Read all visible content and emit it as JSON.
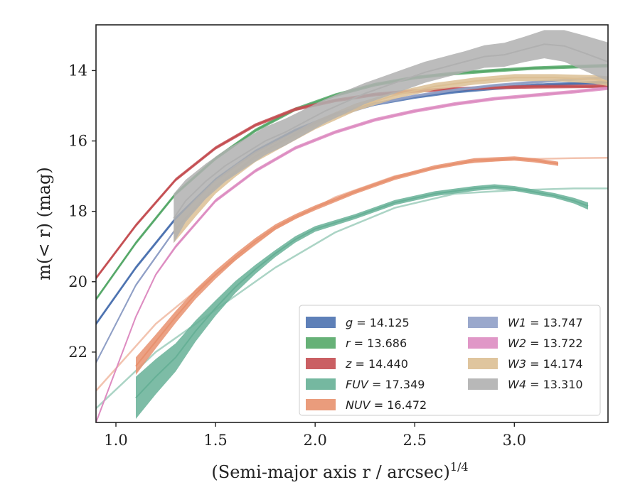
{
  "chart_data": {
    "type": "line",
    "xlabel": "(Semi-major axis r / arcsec)",
    "xlabel_sup": "1/4",
    "ylabel": "m(< r) (mag)",
    "xlim": [
      0.9,
      3.47
    ],
    "ylim": [
      24.0,
      12.7
    ],
    "y_inverted": true,
    "x_ticks": [
      1.0,
      1.5,
      2.0,
      2.5,
      3.0
    ],
    "x_tick_labels": [
      "1.0",
      "1.5",
      "2.0",
      "2.5",
      "3.0"
    ],
    "y_ticks": [
      14,
      16,
      18,
      20,
      22
    ],
    "y_tick_labels": [
      "14",
      "16",
      "18",
      "20",
      "22"
    ],
    "grid": false,
    "legend_position": "lower-right",
    "series": [
      {
        "name": "g = 14.125",
        "label_var": "g",
        "label_val": "= 14.125",
        "color": "#4c72b0",
        "x": [
          0.9,
          1.1,
          1.3,
          1.5,
          1.7,
          1.9,
          2.1,
          2.3,
          2.5,
          2.7,
          2.9,
          3.1,
          3.3,
          3.47
        ],
        "y": [
          21.2,
          19.6,
          18.2,
          17.1,
          16.3,
          15.7,
          15.25,
          14.95,
          14.75,
          14.6,
          14.5,
          14.42,
          14.37,
          14.33
        ],
        "band": [
          0.05,
          0.05,
          0.05,
          0.05,
          0.05,
          0.05,
          0.05,
          0.05,
          0.05,
          0.05,
          0.05,
          0.05,
          0.05,
          0.05
        ]
      },
      {
        "name": "r = 13.686",
        "label_var": "r",
        "label_val": "= 13.686",
        "color": "#55a868",
        "x": [
          0.9,
          1.1,
          1.3,
          1.5,
          1.7,
          1.9,
          2.1,
          2.3,
          2.5,
          2.7,
          2.9,
          3.1,
          3.3,
          3.47
        ],
        "y": [
          20.5,
          18.9,
          17.5,
          16.5,
          15.7,
          15.1,
          14.7,
          14.4,
          14.2,
          14.08,
          14.0,
          13.93,
          13.89,
          13.86
        ],
        "band": [
          0.05,
          0.05,
          0.05,
          0.05,
          0.05,
          0.05,
          0.05,
          0.05,
          0.05,
          0.05,
          0.05,
          0.05,
          0.05,
          0.05
        ]
      },
      {
        "name": "z = 14.440",
        "label_var": "z",
        "label_val": "= 14.440",
        "color": "#c44e52",
        "x": [
          0.9,
          1.1,
          1.3,
          1.5,
          1.7,
          1.9,
          2.1,
          2.3,
          2.5,
          2.7,
          2.9,
          3.1,
          3.3,
          3.47
        ],
        "y": [
          19.9,
          18.4,
          17.1,
          16.2,
          15.55,
          15.1,
          14.85,
          14.68,
          14.58,
          14.52,
          14.48,
          14.46,
          14.45,
          14.44
        ],
        "band": [
          0.05,
          0.05,
          0.05,
          0.05,
          0.05,
          0.05,
          0.05,
          0.05,
          0.05,
          0.05,
          0.05,
          0.05,
          0.05,
          0.05
        ]
      },
      {
        "name": "FUV = 17.349",
        "label_var": "FUV",
        "label_val": "= 17.349",
        "color": "#66b096",
        "x": [
          1.1,
          1.2,
          1.3,
          1.4,
          1.5,
          1.6,
          1.7,
          1.8,
          1.9,
          2.0,
          2.2,
          2.4,
          2.6,
          2.8,
          2.9,
          3.0,
          3.1,
          3.2,
          3.3,
          3.37
        ],
        "y": [
          23.3,
          22.7,
          22.15,
          21.4,
          20.75,
          20.15,
          19.65,
          19.2,
          18.8,
          18.5,
          18.15,
          17.75,
          17.5,
          17.35,
          17.3,
          17.35,
          17.45,
          17.55,
          17.7,
          17.85
        ],
        "band": [
          0.6,
          0.5,
          0.4,
          0.3,
          0.22,
          0.17,
          0.13,
          0.1,
          0.09,
          0.08,
          0.07,
          0.07,
          0.07,
          0.07,
          0.07,
          0.07,
          0.07,
          0.07,
          0.08,
          0.1
        ],
        "model_x": [
          0.9,
          1.2,
          1.5,
          1.8,
          2.1,
          2.4,
          2.7,
          3.0,
          3.3,
          3.47
        ],
        "model_y": [
          23.6,
          22.0,
          20.8,
          19.6,
          18.6,
          17.9,
          17.5,
          17.4,
          17.35,
          17.35
        ]
      },
      {
        "name": "NUV = 16.472",
        "label_var": "NUV",
        "label_val": "= 16.472",
        "color": "#e8916e",
        "x": [
          1.1,
          1.2,
          1.3,
          1.4,
          1.5,
          1.6,
          1.7,
          1.8,
          1.9,
          2.0,
          2.2,
          2.4,
          2.6,
          2.8,
          3.0,
          3.1,
          3.2,
          3.22
        ],
        "y": [
          22.4,
          21.7,
          21.0,
          20.35,
          19.8,
          19.3,
          18.85,
          18.45,
          18.15,
          17.9,
          17.45,
          17.05,
          16.75,
          16.55,
          16.5,
          16.55,
          16.63,
          16.65
        ],
        "band": [
          0.25,
          0.2,
          0.17,
          0.14,
          0.12,
          0.1,
          0.09,
          0.08,
          0.07,
          0.07,
          0.06,
          0.06,
          0.06,
          0.06,
          0.06,
          0.06,
          0.06,
          0.06
        ],
        "model_x": [
          0.9,
          1.2,
          1.5,
          1.8,
          2.1,
          2.4,
          2.7,
          3.0,
          3.3,
          3.47
        ],
        "model_y": [
          23.1,
          21.2,
          19.8,
          18.5,
          17.6,
          17.0,
          16.65,
          16.52,
          16.49,
          16.48
        ]
      },
      {
        "name": "W1 = 13.747",
        "label_var": "W1",
        "label_val": "= 13.747",
        "color": "#8f9fc6",
        "x": [
          0.9,
          1.1,
          1.3,
          1.5,
          1.7,
          1.9,
          2.1,
          2.3,
          2.5,
          2.7,
          2.9,
          3.1,
          3.3,
          3.47
        ],
        "y": [
          22.3,
          20.1,
          18.5,
          17.3,
          16.45,
          15.8,
          15.3,
          14.95,
          14.72,
          14.55,
          14.42,
          14.33,
          14.25,
          14.2
        ],
        "band": [
          0.04,
          0.04,
          0.04,
          0.04,
          0.04,
          0.04,
          0.04,
          0.04,
          0.04,
          0.04,
          0.04,
          0.04,
          0.04,
          0.04
        ]
      },
      {
        "name": "W2 = 13.722",
        "label_var": "W2",
        "label_val": "= 13.722",
        "color": "#dd8cc1",
        "x": [
          0.9,
          1.1,
          1.2,
          1.3,
          1.5,
          1.7,
          1.9,
          2.1,
          2.3,
          2.5,
          2.7,
          2.9,
          3.1,
          3.3,
          3.47
        ],
        "y": [
          24.0,
          21.0,
          19.8,
          19.0,
          17.7,
          16.85,
          16.2,
          15.75,
          15.4,
          15.15,
          14.95,
          14.8,
          14.7,
          14.6,
          14.5
        ],
        "band": [
          0.04,
          0.04,
          0.04,
          0.05,
          0.05,
          0.05,
          0.05,
          0.05,
          0.05,
          0.05,
          0.05,
          0.05,
          0.05,
          0.05,
          0.05
        ]
      },
      {
        "name": "W3 = 14.174",
        "label_var": "W3",
        "label_val": "= 14.174",
        "color": "#dcbf94",
        "x": [
          1.29,
          1.4,
          1.5,
          1.6,
          1.7,
          1.8,
          1.9,
          2.0,
          2.2,
          2.4,
          2.6,
          2.8,
          3.0,
          3.2,
          3.4,
          3.47
        ],
        "y": [
          18.6,
          17.9,
          17.3,
          16.85,
          16.45,
          16.15,
          15.85,
          15.55,
          15.05,
          14.7,
          14.45,
          14.3,
          14.2,
          14.2,
          14.25,
          14.3
        ],
        "band": [
          0.3,
          0.25,
          0.2,
          0.17,
          0.15,
          0.14,
          0.13,
          0.12,
          0.11,
          0.1,
          0.1,
          0.1,
          0.1,
          0.1,
          0.12,
          0.14
        ]
      },
      {
        "name": "W4 = 13.310",
        "label_var": "W4",
        "label_val": "= 13.310",
        "color": "#b0b0b0",
        "x": [
          1.29,
          1.35,
          1.45,
          1.55,
          1.65,
          1.75,
          1.85,
          1.95,
          2.05,
          2.15,
          2.25,
          2.35,
          2.45,
          2.55,
          2.65,
          2.75,
          2.85,
          2.95,
          3.05,
          3.15,
          3.25,
          3.35,
          3.47
        ],
        "y": [
          18.2,
          17.7,
          17.15,
          16.7,
          16.35,
          16.0,
          15.75,
          15.45,
          15.15,
          14.9,
          14.65,
          14.45,
          14.25,
          14.05,
          13.9,
          13.75,
          13.6,
          13.55,
          13.4,
          13.25,
          13.3,
          13.5,
          13.75
        ],
        "band": [
          0.7,
          0.6,
          0.5,
          0.45,
          0.42,
          0.4,
          0.38,
          0.36,
          0.34,
          0.32,
          0.3,
          0.3,
          0.3,
          0.3,
          0.3,
          0.3,
          0.32,
          0.34,
          0.36,
          0.4,
          0.45,
          0.5,
          0.55
        ]
      }
    ]
  }
}
